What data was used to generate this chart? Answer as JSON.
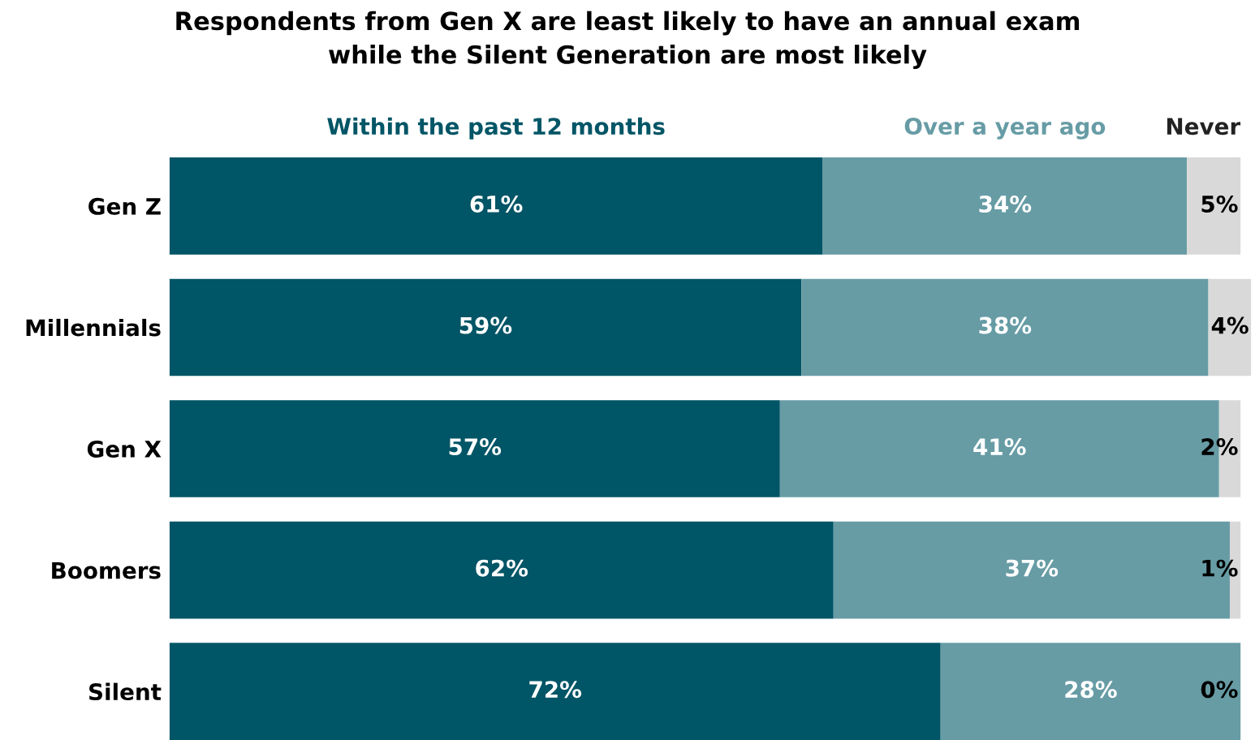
{
  "chart_data": {
    "type": "bar",
    "orientation": "horizontal",
    "stacked": true,
    "title": "Respondents from Gen X are least likely to have an annual exam\nwhile the Silent Generation are most likely",
    "categories": [
      "Gen Z",
      "Millennials",
      "Gen X",
      "Boomers",
      "Silent"
    ],
    "series": [
      {
        "name": "Within the past 12 months",
        "color": "#005566",
        "values": [
          61,
          59,
          57,
          62,
          72
        ],
        "value_labels": [
          "61%",
          "59%",
          "57%",
          "62%",
          "72%"
        ]
      },
      {
        "name": "Over a year ago",
        "color": "#679ca5",
        "values": [
          34,
          38,
          41,
          37,
          28
        ],
        "value_labels": [
          "34%",
          "38%",
          "41%",
          "37%",
          "28%"
        ]
      },
      {
        "name": "Never",
        "color": "#d9d9d9",
        "values": [
          5,
          4,
          2,
          1,
          0
        ],
        "value_labels": [
          "5%",
          "4%",
          "2%",
          "1%",
          "0%"
        ]
      }
    ],
    "tick_labels": "y",
    "legend": "top",
    "grid": false
  }
}
